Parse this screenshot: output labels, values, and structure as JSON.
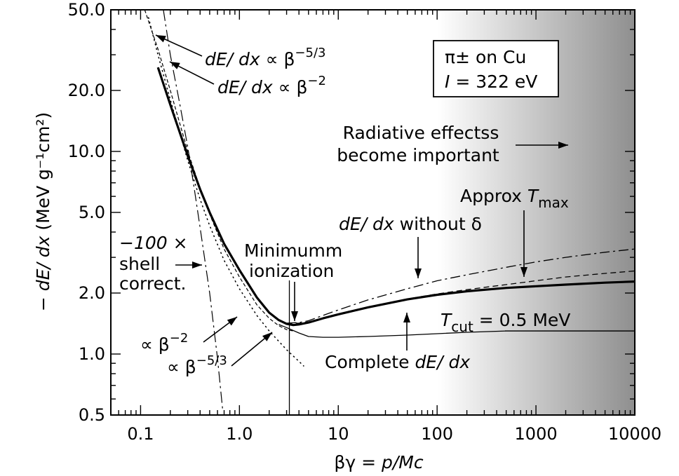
{
  "chart_data": {
    "type": "line",
    "xscale": "log",
    "yscale": "log",
    "xlim": [
      0.05,
      10000
    ],
    "ylim": [
      0.5,
      50.0
    ],
    "xticks": [
      {
        "value": 0.1,
        "label": "0.1"
      },
      {
        "value": 1,
        "label": "1.0"
      },
      {
        "value": 10,
        "label": "10"
      },
      {
        "value": 100,
        "label": "100"
      },
      {
        "value": 1000,
        "label": "1000"
      },
      {
        "value": 10000,
        "label": "10000"
      }
    ],
    "yticks": [
      {
        "value": 0.5,
        "label": "0.5"
      },
      {
        "value": 1.0,
        "label": "1.0"
      },
      {
        "value": 2.0,
        "label": "2.0"
      },
      {
        "value": 5.0,
        "label": "5.0"
      },
      {
        "value": 10.0,
        "label": "10.0"
      },
      {
        "value": 20.0,
        "label": "20.0"
      },
      {
        "value": 50.0,
        "label": "50.0"
      }
    ],
    "xlabel": {
      "pre": "βγ = ",
      "ital": "p/Mc"
    },
    "ylabel": {
      "pre": "− ",
      "ital": "dE/ dx",
      "post": " (MeV g⁻¹cm²)"
    },
    "legend_box": {
      "line1": "π± on Cu",
      "line2_ital": "I",
      "line2": " = 322 eV"
    },
    "radiative_shade": {
      "from_x": 1000,
      "to_x": 10000
    },
    "minimum_ionization_x": 3.2,
    "series": [
      {
        "key": "complete",
        "style": "solid-thick",
        "x": [
          0.15,
          0.2,
          0.3,
          0.4,
          0.5,
          0.7,
          1.0,
          1.5,
          2.0,
          2.5,
          3.0,
          3.5,
          4.0,
          5.0,
          7.0,
          10,
          20,
          50,
          100,
          200,
          500,
          1000,
          2000,
          5000,
          10000
        ],
        "y": [
          26.0,
          17.0,
          9.5,
          6.5,
          5.0,
          3.5,
          2.6,
          1.9,
          1.6,
          1.47,
          1.41,
          1.39,
          1.4,
          1.43,
          1.5,
          1.57,
          1.7,
          1.86,
          1.96,
          2.04,
          2.12,
          2.16,
          2.2,
          2.25,
          2.28
        ]
      },
      {
        "key": "without_delta",
        "style": "dash-dot",
        "x": [
          3.0,
          4.0,
          5.0,
          7.0,
          10,
          20,
          50,
          100,
          200,
          500,
          1000,
          2000,
          5000,
          10000
        ],
        "y": [
          1.42,
          1.43,
          1.46,
          1.55,
          1.65,
          1.85,
          2.1,
          2.3,
          2.46,
          2.68,
          2.85,
          3.0,
          3.18,
          3.3
        ]
      },
      {
        "key": "approx_tmax",
        "style": "dashed",
        "x": [
          3.0,
          4.0,
          5.0,
          7.0,
          10,
          20,
          50,
          100,
          200,
          500,
          1000,
          2000,
          5000,
          10000
        ],
        "y": [
          1.42,
          1.42,
          1.44,
          1.5,
          1.57,
          1.7,
          1.87,
          1.98,
          2.08,
          2.2,
          2.3,
          2.4,
          2.5,
          2.57
        ]
      },
      {
        "key": "t_cut",
        "style": "solid-thin",
        "x": [
          2.5,
          3.0,
          4.0,
          5.0,
          7.0,
          10,
          20,
          50,
          100,
          200,
          500,
          1000,
          10000
        ],
        "y": [
          1.4,
          1.35,
          1.27,
          1.22,
          1.21,
          1.21,
          1.22,
          1.24,
          1.26,
          1.28,
          1.3,
          1.3,
          1.3
        ]
      },
      {
        "key": "beta_minus_2",
        "style": "dotted",
        "x": [
          0.12,
          0.15,
          0.2,
          0.3,
          0.4,
          0.5,
          0.7,
          1.0,
          1.5,
          2.0,
          3.0,
          4.0,
          4.5
        ],
        "y": [
          46.0,
          30.0,
          18.0,
          9.0,
          5.8,
          4.3,
          2.9,
          2.1,
          1.55,
          1.3,
          1.05,
          0.92,
          0.87
        ]
      },
      {
        "key": "beta_minus_5_3",
        "style": "dashed-fine",
        "x": [
          0.11,
          0.15,
          0.2,
          0.3,
          0.4,
          0.5,
          0.7,
          1.0,
          1.5,
          2.0,
          2.5,
          3.0,
          3.5
        ],
        "y": [
          50.0,
          32.0,
          20.0,
          10.0,
          6.6,
          4.9,
          3.3,
          2.4,
          1.75,
          1.5,
          1.38,
          1.32,
          1.3
        ]
      },
      {
        "key": "shell_correction",
        "style": "dash-dot-long",
        "x": [
          0.17,
          0.2,
          0.25,
          0.3,
          0.35,
          0.4,
          0.5,
          0.6,
          0.68
        ],
        "y": [
          50.0,
          30.0,
          17.0,
          10.5,
          6.5,
          4.2,
          2.0,
          0.95,
          0.52
        ]
      }
    ],
    "annotations": {
      "b53_top": {
        "pre": "dE/ dx",
        "post": " ∝ β",
        "sup": "−5/3"
      },
      "b2_top": {
        "pre": "dE/ dx",
        "post": " ∝ β",
        "sup": "−2"
      },
      "radiative_1": "Radiative effectss",
      "radiative_2": "become important",
      "approx": {
        "pre": "Approx ",
        "ital": "T",
        "sub": "max"
      },
      "without_delta": {
        "ital": "dE/ dx",
        "post": " without δ"
      },
      "min_ion_1": "Minimumm",
      "min_ion_2": "ionization",
      "shell_1": {
        "ital": "−100",
        "post": " ×"
      },
      "shell_2": "shell",
      "shell_3": "correct.",
      "tcut": {
        "ital": "T",
        "sub": "cut",
        "post": " = 0.5 MeV"
      },
      "beta2_low": {
        "pre": "∝ β",
        "sup": "−2"
      },
      "beta53_low": {
        "pre": "∝ β",
        "sup": "−5/3"
      },
      "complete": {
        "pre": "Complete ",
        "ital": "dE/ dx"
      }
    }
  }
}
